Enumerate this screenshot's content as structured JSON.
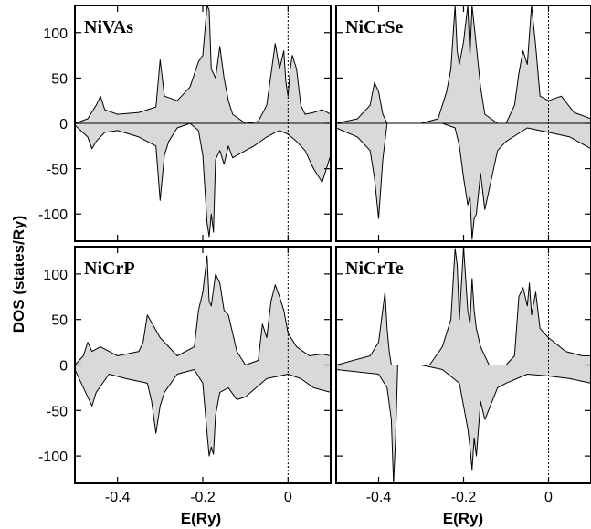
{
  "chart_data": {
    "type": "area",
    "ylabel": "DOS (states/Ry)",
    "xlabel": "E(Ry)",
    "xlim": [
      -0.5,
      0.1
    ],
    "ylim": [
      -130,
      130
    ],
    "x_ticks": [
      -0.4,
      -0.2,
      0
    ],
    "x_tick_labels": [
      "-0.4",
      "-0.2",
      "0"
    ],
    "y_ticks": [
      -100,
      -50,
      0,
      50,
      100
    ],
    "y_tick_labels": [
      "-100",
      "-50",
      "0",
      "50",
      "100"
    ],
    "fermi_level": 0,
    "panels": [
      {
        "title": "NiVAs",
        "spin_up": {
          "x": [
            -0.5,
            -0.47,
            -0.45,
            -0.44,
            -0.43,
            -0.4,
            -0.35,
            -0.31,
            -0.3,
            -0.29,
            -0.26,
            -0.23,
            -0.21,
            -0.2,
            -0.19,
            -0.185,
            -0.18,
            -0.17,
            -0.16,
            -0.15,
            -0.14,
            -0.13,
            -0.1,
            -0.07,
            -0.05,
            -0.03,
            -0.02,
            -0.01,
            -0.005,
            0,
            0.005,
            0.01,
            0.02,
            0.03,
            0.04,
            0.06,
            0.08,
            0.1
          ],
          "values": [
            0,
            5,
            20,
            30,
            15,
            10,
            12,
            18,
            70,
            30,
            25,
            40,
            68,
            75,
            130,
            125,
            60,
            50,
            85,
            50,
            25,
            10,
            0,
            2,
            20,
            88,
            60,
            80,
            45,
            30,
            60,
            75,
            60,
            20,
            10,
            12,
            15,
            10
          ]
        },
        "spin_down": {
          "x": [
            -0.5,
            -0.47,
            -0.46,
            -0.45,
            -0.43,
            -0.4,
            -0.35,
            -0.31,
            -0.3,
            -0.29,
            -0.28,
            -0.26,
            -0.23,
            -0.21,
            -0.2,
            -0.19,
            -0.185,
            -0.18,
            -0.175,
            -0.17,
            -0.16,
            -0.15,
            -0.14,
            -0.13,
            -0.1,
            -0.08,
            -0.05,
            -0.03,
            -0.02,
            0,
            0.02,
            0.04,
            0.06,
            0.08,
            0.1
          ],
          "values": [
            -2,
            -15,
            -28,
            -20,
            -10,
            -8,
            -15,
            -25,
            -85,
            -35,
            -20,
            -5,
            0,
            -8,
            -35,
            -110,
            -125,
            -100,
            -120,
            -40,
            -30,
            -45,
            -25,
            -38,
            -30,
            -25,
            -15,
            -10,
            -8,
            -12,
            -20,
            -30,
            -50,
            -65,
            -35
          ]
        }
      },
      {
        "title": "NiCrSe",
        "spin_up": {
          "x": [
            -0.5,
            -0.45,
            -0.42,
            -0.41,
            -0.4,
            -0.39,
            -0.38,
            -0.35,
            -0.3,
            -0.26,
            -0.24,
            -0.23,
            -0.22,
            -0.215,
            -0.21,
            -0.2,
            -0.19,
            -0.185,
            -0.18,
            -0.17,
            -0.16,
            -0.15,
            -0.12,
            -0.1,
            -0.08,
            -0.07,
            -0.06,
            -0.05,
            -0.04,
            -0.03,
            -0.02,
            0,
            0.03,
            0.06,
            0.1
          ],
          "values": [
            0,
            5,
            20,
            45,
            35,
            10,
            0,
            0,
            0,
            5,
            35,
            60,
            130,
            80,
            65,
            90,
            130,
            75,
            130,
            85,
            40,
            10,
            0,
            0,
            20,
            55,
            80,
            65,
            130,
            85,
            30,
            25,
            30,
            12,
            5
          ]
        },
        "spin_down": {
          "x": [
            -0.5,
            -0.45,
            -0.42,
            -0.41,
            -0.4,
            -0.39,
            -0.38,
            -0.35,
            -0.25,
            -0.22,
            -0.21,
            -0.2,
            -0.19,
            -0.185,
            -0.18,
            -0.175,
            -0.17,
            -0.16,
            -0.15,
            -0.12,
            -0.1,
            -0.05,
            0,
            0.05,
            0.1
          ],
          "values": [
            -5,
            -15,
            -30,
            -60,
            -105,
            -40,
            0,
            0,
            0,
            -5,
            -25,
            -60,
            -90,
            -80,
            -128,
            -105,
            -100,
            -55,
            -95,
            -30,
            -20,
            -5,
            -10,
            -15,
            -28
          ]
        }
      },
      {
        "title": "NiCrP",
        "spin_up": {
          "x": [
            -0.5,
            -0.48,
            -0.47,
            -0.46,
            -0.44,
            -0.4,
            -0.35,
            -0.34,
            -0.33,
            -0.3,
            -0.26,
            -0.22,
            -0.21,
            -0.2,
            -0.19,
            -0.185,
            -0.18,
            -0.17,
            -0.16,
            -0.15,
            -0.14,
            -0.13,
            -0.12,
            -0.1,
            -0.07,
            -0.06,
            -0.05,
            -0.04,
            -0.03,
            -0.02,
            -0.01,
            0,
            0.02,
            0.05,
            0.08,
            0.1
          ],
          "values": [
            0,
            10,
            25,
            15,
            20,
            10,
            15,
            25,
            55,
            30,
            10,
            20,
            60,
            80,
            120,
            70,
            65,
            100,
            90,
            60,
            55,
            35,
            15,
            0,
            5,
            45,
            30,
            70,
            88,
            75,
            60,
            35,
            20,
            10,
            12,
            10
          ]
        },
        "spin_down": {
          "x": [
            -0.5,
            -0.47,
            -0.46,
            -0.45,
            -0.42,
            -0.38,
            -0.33,
            -0.32,
            -0.31,
            -0.3,
            -0.29,
            -0.26,
            -0.22,
            -0.2,
            -0.19,
            -0.185,
            -0.18,
            -0.175,
            -0.17,
            -0.16,
            -0.14,
            -0.12,
            -0.1,
            -0.05,
            0,
            0.03,
            0.06,
            0.1
          ],
          "values": [
            -5,
            -35,
            -45,
            -30,
            -10,
            -15,
            -20,
            -40,
            -75,
            -45,
            -30,
            -10,
            -5,
            -20,
            -75,
            -100,
            -90,
            -98,
            -55,
            -30,
            -25,
            -38,
            -35,
            -15,
            -10,
            -15,
            -25,
            -30
          ]
        }
      },
      {
        "title": "NiCrTe",
        "spin_up": {
          "x": [
            -0.5,
            -0.42,
            -0.4,
            -0.385,
            -0.38,
            -0.375,
            -0.37,
            -0.36,
            -0.32,
            -0.28,
            -0.25,
            -0.23,
            -0.22,
            -0.215,
            -0.21,
            -0.2,
            -0.19,
            -0.185,
            -0.18,
            -0.175,
            -0.17,
            -0.16,
            -0.14,
            -0.1,
            -0.08,
            -0.07,
            -0.06,
            -0.05,
            -0.045,
            -0.04,
            -0.03,
            -0.02,
            0,
            0.04,
            0.08,
            0.1
          ],
          "values": [
            0,
            10,
            25,
            80,
            40,
            15,
            0,
            0,
            0,
            0,
            20,
            50,
            128,
            110,
            50,
            130,
            60,
            45,
            95,
            60,
            40,
            20,
            0,
            0,
            10,
            75,
            85,
            65,
            90,
            55,
            80,
            40,
            30,
            15,
            10,
            10
          ]
        },
        "spin_down": {
          "x": [
            -0.5,
            -0.4,
            -0.38,
            -0.37,
            -0.365,
            -0.36,
            -0.355,
            -0.35,
            -0.3,
            -0.25,
            -0.21,
            -0.2,
            -0.19,
            -0.185,
            -0.18,
            -0.175,
            -0.17,
            -0.16,
            -0.15,
            -0.12,
            -0.1,
            -0.05,
            0,
            0.05,
            0.1
          ],
          "values": [
            -5,
            -10,
            -25,
            -60,
            -130,
            -80,
            0,
            0,
            0,
            -5,
            -20,
            -45,
            -70,
            -90,
            -115,
            -80,
            -100,
            -40,
            -60,
            -25,
            -20,
            -10,
            -12,
            -15,
            -20
          ]
        }
      }
    ]
  }
}
